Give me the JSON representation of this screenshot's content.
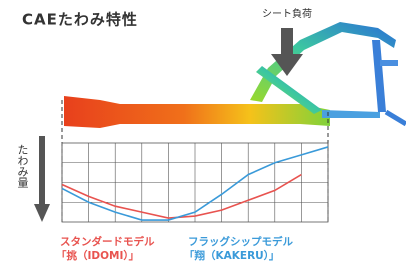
{
  "chart_data": {
    "type": "line",
    "title": "CAEたわみ特性",
    "annotation": "シート負荷",
    "y_label": "たわみ量",
    "x": [
      0,
      1,
      2,
      3,
      4,
      5,
      6,
      7,
      8,
      9,
      10
    ],
    "xlim": [
      0,
      10
    ],
    "xticks": [
      0,
      1,
      2,
      3,
      4,
      5,
      6,
      7,
      8,
      9,
      10
    ],
    "ylim": [
      4,
      0
    ],
    "yticks": [
      1,
      2,
      3
    ],
    "grid": true,
    "series": [
      {
        "name": "スタンダードモデル",
        "subname": "「挑（IDOMI）」",
        "color": "#e8534f",
        "values": [
          2.1,
          2.7,
          3.2,
          3.5,
          3.8,
          3.7,
          3.4,
          2.9,
          2.4,
          1.6,
          null
        ]
      },
      {
        "name": "フラッグシップモデル",
        "subname": "「翔（KAKERU）」",
        "color": "#3a9ad9",
        "values": [
          2.3,
          3.0,
          3.5,
          3.9,
          3.9,
          3.5,
          2.6,
          1.6,
          1.0,
          0.6,
          0.2
        ]
      }
    ]
  }
}
